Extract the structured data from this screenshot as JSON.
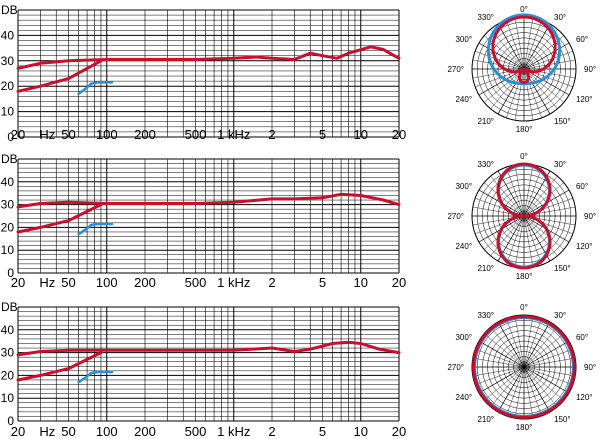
{
  "colors": {
    "grid": "#000000",
    "red": "#c8102e",
    "blue": "#2b8fd6"
  },
  "freq_axis": {
    "tick_labels": [
      {
        "f": 20,
        "text": "20"
      },
      {
        "f": 34,
        "text": "Hz"
      },
      {
        "f": 50,
        "text": "50"
      },
      {
        "f": 100,
        "text": "100"
      },
      {
        "f": 200,
        "text": "200"
      },
      {
        "f": 500,
        "text": "500"
      },
      {
        "f": 1000,
        "text": "1 kHz"
      },
      {
        "f": 2000,
        "text": "2"
      },
      {
        "f": 5000,
        "text": "5"
      },
      {
        "f": 10000,
        "text": "10"
      },
      {
        "f": 20000,
        "text": "20"
      }
    ]
  },
  "db_axis": {
    "label": "DB",
    "ticks": [
      "0",
      "10",
      "20",
      "30",
      "40"
    ]
  },
  "polar_angle_labels": [
    "0°",
    "30°",
    "60°",
    "90°",
    "120°",
    "150°",
    "180°",
    "210°",
    "240°",
    "270°",
    "300°",
    "330°"
  ],
  "chart_data": [
    {
      "type": "line",
      "xscale": "log",
      "xlim": [
        20,
        20000
      ],
      "ylim": [
        0,
        50
      ],
      "grid": true,
      "series": [
        {
          "color": "red",
          "points": [
            [
              20,
              27
            ],
            [
              30,
              29
            ],
            [
              50,
              30
            ],
            [
              100,
              30.5
            ],
            [
              200,
              30.5
            ],
            [
              500,
              30.5
            ],
            [
              1000,
              31
            ],
            [
              1500,
              31.5
            ],
            [
              2000,
              31
            ],
            [
              3000,
              30.5
            ],
            [
              4000,
              33
            ],
            [
              5000,
              32
            ],
            [
              6500,
              31
            ],
            [
              8000,
              33
            ],
            [
              12000,
              35.5
            ],
            [
              15000,
              34.5
            ],
            [
              20000,
              31
            ]
          ]
        },
        {
          "color": "red",
          "points": [
            [
              20,
              18
            ],
            [
              30,
              20
            ],
            [
              50,
              23
            ],
            [
              70,
              27
            ],
            [
              90,
              30
            ]
          ]
        },
        {
          "color": "blue",
          "points": [
            [
              60,
              17
            ],
            [
              70,
              19.5
            ],
            [
              75,
              21
            ],
            [
              85,
              21.5
            ],
            [
              110,
              21.5
            ]
          ]
        }
      ],
      "polar": {
        "series": [
          {
            "color": "blue",
            "pattern": "cardioid"
          },
          {
            "color": "red",
            "pattern": "cardioid"
          }
        ]
      }
    },
    {
      "type": "line",
      "xscale": "log",
      "xlim": [
        20,
        20000
      ],
      "ylim": [
        0,
        50
      ],
      "grid": true,
      "series": [
        {
          "color": "red",
          "points": [
            [
              20,
              29
            ],
            [
              30,
              30.5
            ],
            [
              50,
              31
            ],
            [
              100,
              30.5
            ],
            [
              200,
              30.5
            ],
            [
              500,
              30.5
            ],
            [
              1000,
              31
            ],
            [
              2000,
              32.5
            ],
            [
              3000,
              32.5
            ],
            [
              5000,
              33
            ],
            [
              7000,
              34.5
            ],
            [
              10000,
              34
            ],
            [
              15000,
              32
            ],
            [
              20000,
              30
            ]
          ]
        },
        {
          "color": "red",
          "points": [
            [
              20,
              18
            ],
            [
              30,
              20
            ],
            [
              50,
              23
            ],
            [
              70,
              27
            ],
            [
              90,
              30
            ]
          ]
        },
        {
          "color": "blue",
          "points": [
            [
              60,
              17
            ],
            [
              70,
              19.5
            ],
            [
              75,
              21
            ],
            [
              85,
              21.5
            ],
            [
              110,
              21.5
            ]
          ]
        }
      ],
      "polar": {
        "series": [
          {
            "color": "blue",
            "pattern": "figure-8"
          },
          {
            "color": "red",
            "pattern": "figure-8"
          }
        ]
      }
    },
    {
      "type": "line",
      "xscale": "log",
      "xlim": [
        20,
        20000
      ],
      "ylim": [
        0,
        50
      ],
      "grid": true,
      "series": [
        {
          "color": "red",
          "points": [
            [
              20,
              29
            ],
            [
              30,
              30.5
            ],
            [
              50,
              31
            ],
            [
              100,
              31
            ],
            [
              200,
              31
            ],
            [
              500,
              31
            ],
            [
              1000,
              31
            ],
            [
              2000,
              32
            ],
            [
              3000,
              30.5
            ],
            [
              4000,
              31.5
            ],
            [
              6000,
              34
            ],
            [
              8000,
              34.5
            ],
            [
              10000,
              34
            ],
            [
              14000,
              31.5
            ],
            [
              20000,
              30
            ]
          ]
        },
        {
          "color": "red",
          "points": [
            [
              20,
              18
            ],
            [
              30,
              20
            ],
            [
              50,
              23
            ],
            [
              70,
              27
            ],
            [
              90,
              30
            ]
          ]
        },
        {
          "color": "blue",
          "points": [
            [
              60,
              17
            ],
            [
              70,
              19.5
            ],
            [
              75,
              21
            ],
            [
              85,
              21.5
            ],
            [
              110,
              21.5
            ]
          ]
        }
      ],
      "polar": {
        "series": [
          {
            "color": "blue",
            "pattern": "omni"
          },
          {
            "color": "red",
            "pattern": "omni"
          }
        ]
      }
    }
  ]
}
